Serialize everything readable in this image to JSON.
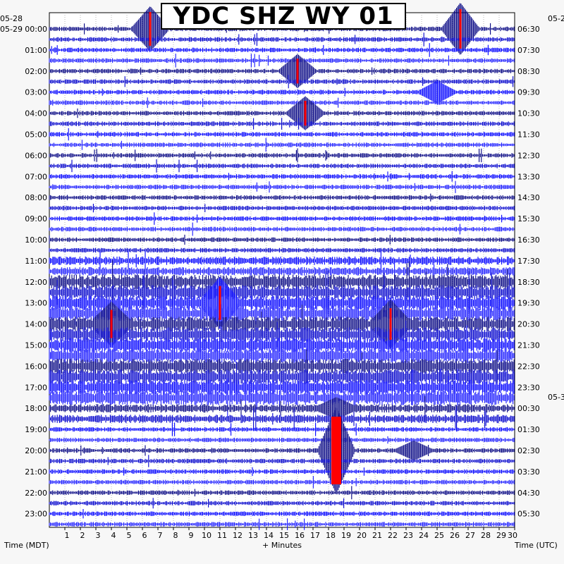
{
  "chart_data": {
    "type": "line",
    "title": "YDC SHZ WY 01",
    "xlabel": "+ Minutes",
    "left_axis_label": "Time (MDT)",
    "right_axis_label": "Time (UTC)",
    "xlim": [
      0,
      30
    ],
    "x_ticks": [
      "1",
      "2",
      "3",
      "4",
      "5",
      "6",
      "7",
      "8",
      "9",
      "10",
      "11",
      "12",
      "13",
      "14",
      "15",
      "16",
      "17",
      "18",
      "19",
      "20",
      "21",
      "22",
      "23",
      "24",
      "25",
      "26",
      "27",
      "28",
      "29",
      "30"
    ],
    "left_date_labels": [
      "05-28",
      "05-29"
    ],
    "right_date_labels": [
      "05-2",
      "05-3"
    ],
    "left_hour_labels": [
      "00:00",
      "01:00",
      "02:00",
      "03:00",
      "04:00",
      "05:00",
      "06:00",
      "07:00",
      "08:00",
      "09:00",
      "10:00",
      "11:00",
      "12:00",
      "13:00",
      "14:00",
      "15:00",
      "16:00",
      "17:00",
      "18:00",
      "19:00",
      "20:00",
      "21:00",
      "22:00",
      "23:00"
    ],
    "right_hour_labels": [
      "06:30",
      "07:30",
      "08:30",
      "09:30",
      "10:30",
      "11:30",
      "12:30",
      "13:30",
      "14:30",
      "15:30",
      "16:30",
      "17:30",
      "18:30",
      "19:30",
      "20:30",
      "21:30",
      "22:30",
      "23:30",
      "00:30",
      "01:30",
      "02:30",
      "03:30",
      "04:30",
      "05:30"
    ],
    "trace_colors": [
      "#000080",
      "#0000cc",
      "#0000ff",
      "#1a1aff"
    ],
    "clip_color": "#ff0000",
    "rows_per_hour": 2,
    "minutes_per_row": 30,
    "events": [
      {
        "hour": 0,
        "minute": 6.5,
        "amp": 30
      },
      {
        "hour": 0,
        "minute": 26.5,
        "amp": 35
      },
      {
        "hour": 2,
        "minute": 16,
        "amp": 22
      },
      {
        "hour": 3,
        "minute": 25,
        "amp": 14
      },
      {
        "hour": 4,
        "minute": 16.5,
        "amp": 22
      },
      {
        "hour": 13,
        "minute": 11,
        "amp": 30
      },
      {
        "hour": 14,
        "minute": 4,
        "amp": 25
      },
      {
        "hour": 14,
        "minute": 22,
        "amp": 28
      },
      {
        "hour": 18,
        "minute": 18.5,
        "amp": 12
      },
      {
        "hour": 20,
        "minute": 18.5,
        "amp": 60
      },
      {
        "hour": 20,
        "minute": 23.5,
        "amp": 12
      }
    ]
  }
}
